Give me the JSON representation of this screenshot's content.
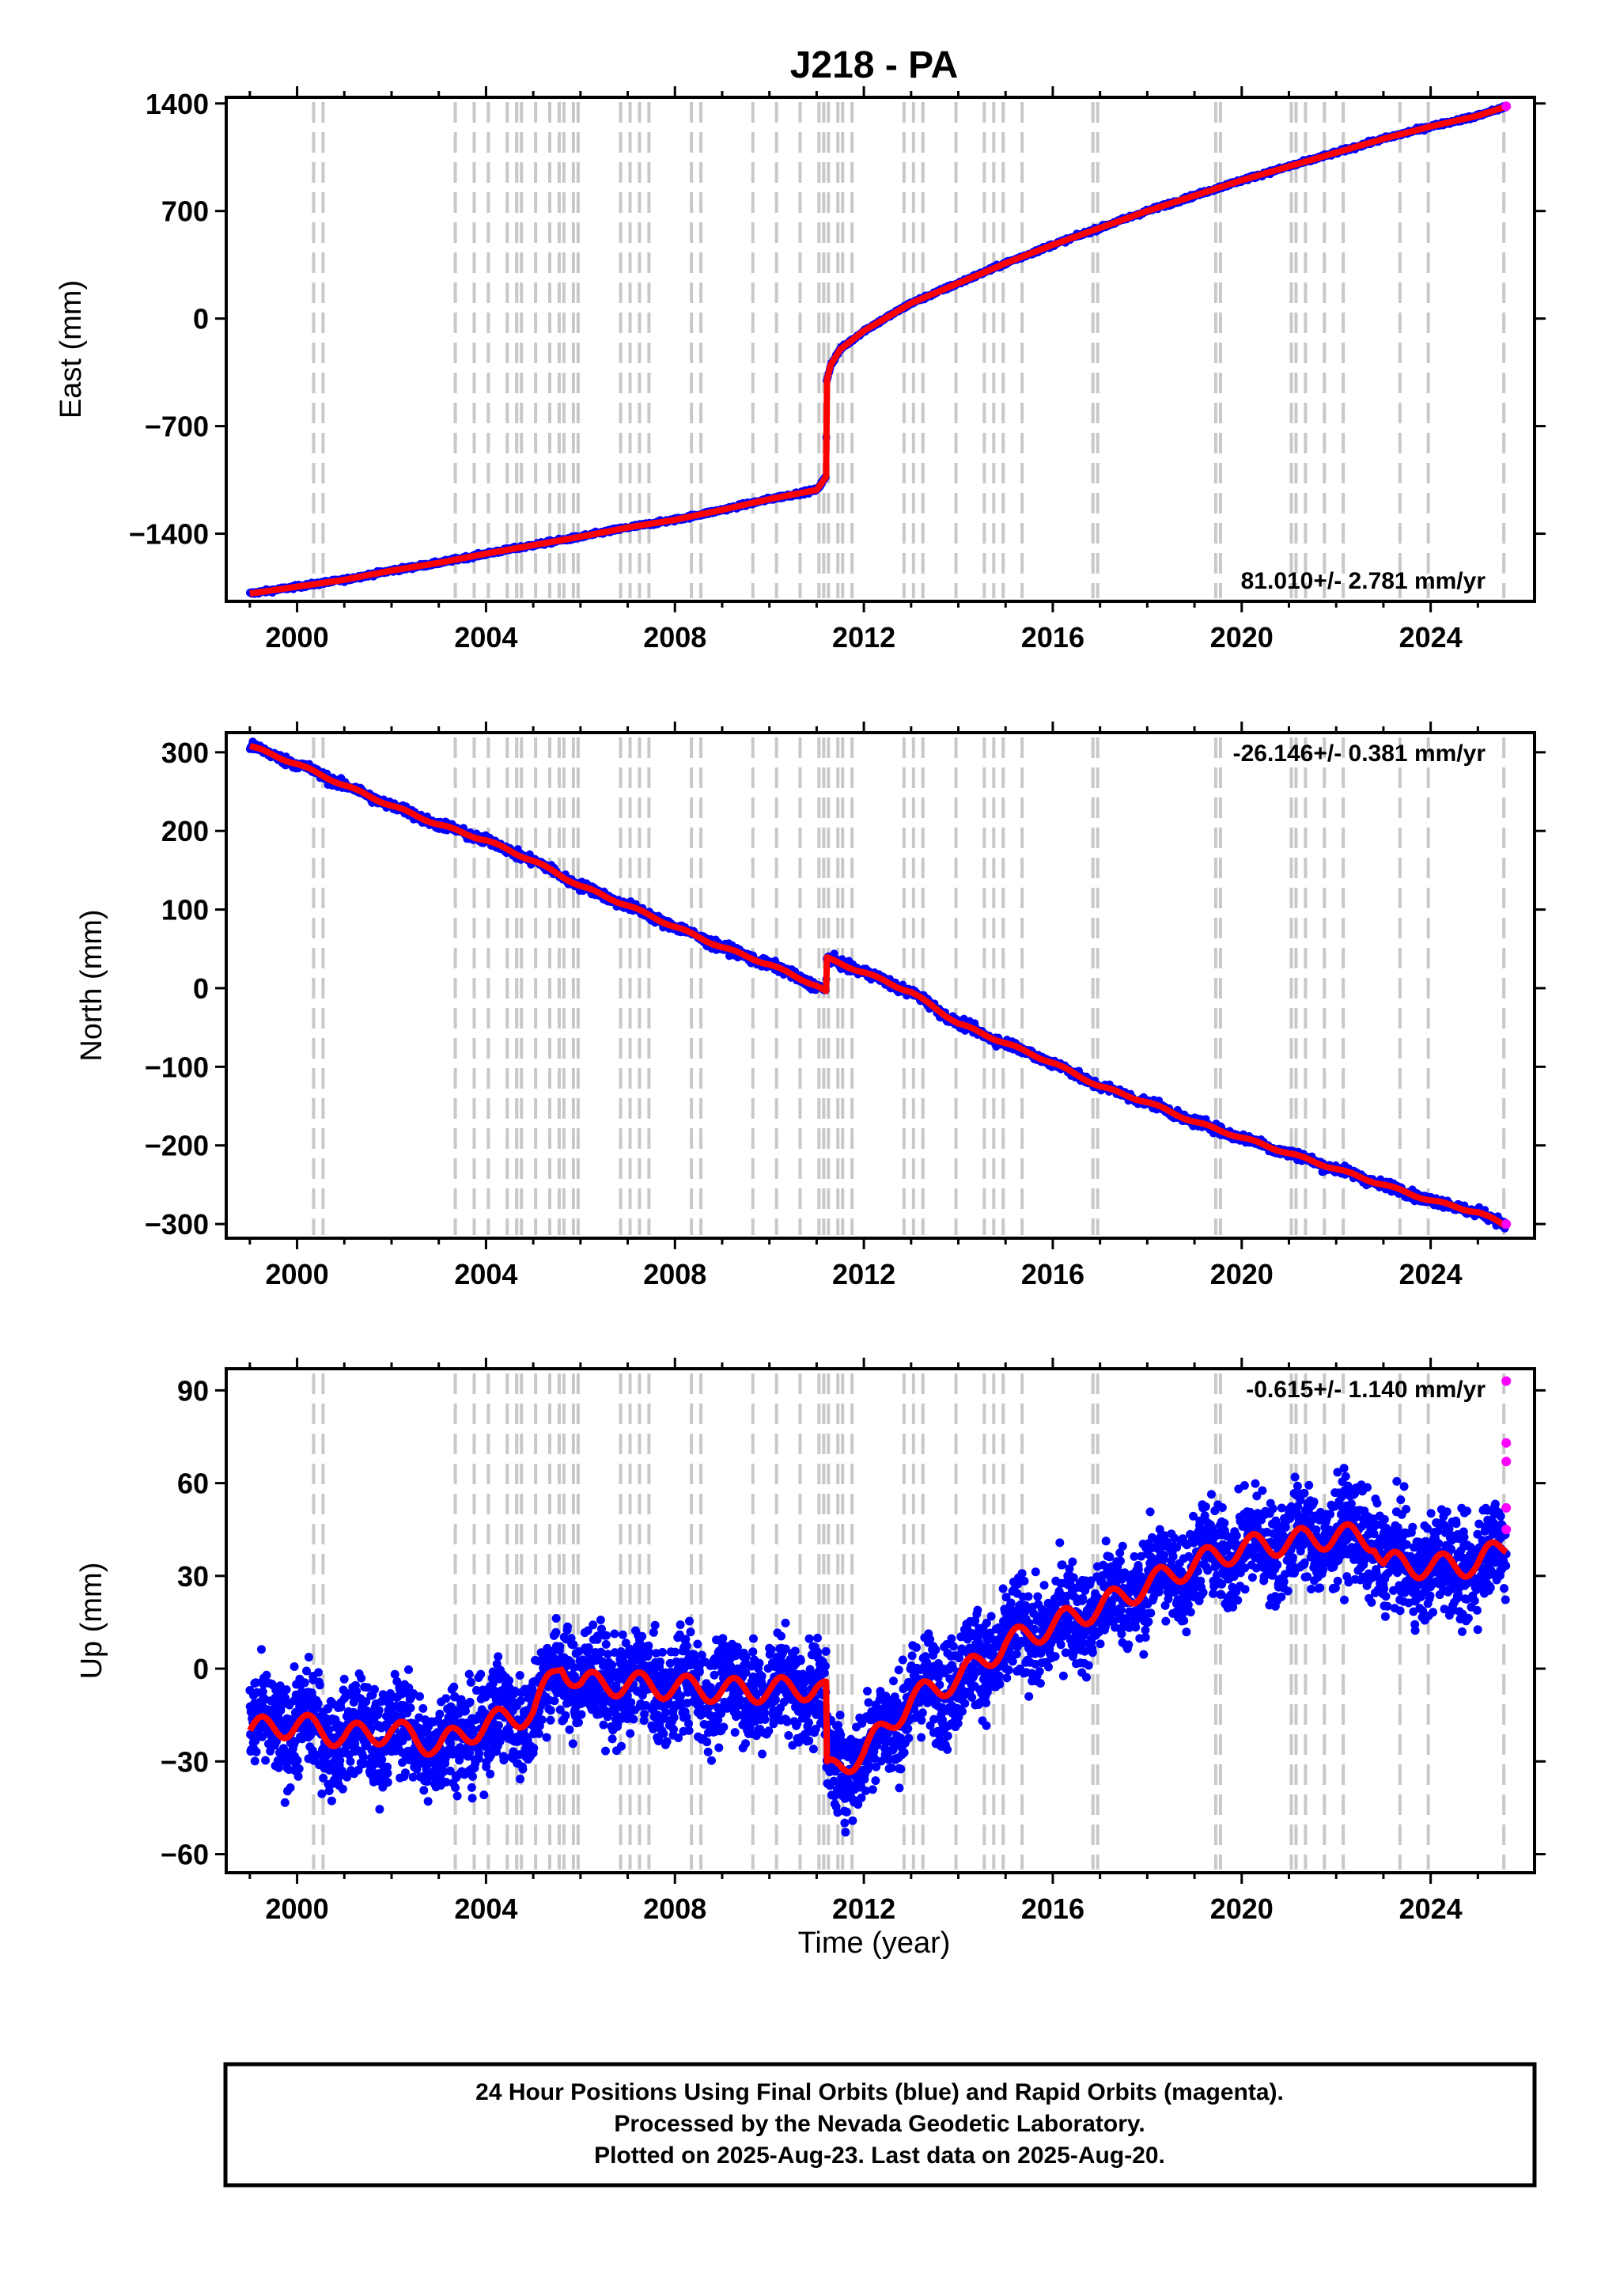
{
  "title": "J218 - PA",
  "colors": {
    "final_orbits": "#0000ff",
    "rapid_orbits": "#ff00ff",
    "model_fit": "#ff0000",
    "event_lines": "#c8c8c8"
  },
  "x_axis": {
    "label": "Time (year)",
    "ticks": [
      2000,
      2004,
      2008,
      2012,
      2016,
      2020,
      2024
    ],
    "range": [
      1998.5,
      2026.2
    ]
  },
  "event_years": [
    2000.35,
    2000.55,
    2003.35,
    2003.75,
    2004.05,
    2004.45,
    2004.65,
    2004.75,
    2005.05,
    2005.35,
    2005.55,
    2005.65,
    2005.85,
    2005.95,
    2006.85,
    2007.05,
    2007.25,
    2007.45,
    2008.35,
    2008.55,
    2009.65,
    2010.15,
    2010.65,
    2011.05,
    2011.15,
    2011.25,
    2011.45,
    2011.55,
    2011.75,
    2012.85,
    2013.05,
    2013.25,
    2013.95,
    2014.55,
    2014.75,
    2014.95,
    2015.35,
    2016.85,
    2016.95,
    2019.45,
    2019.55,
    2021.05,
    2021.15,
    2021.35,
    2021.75,
    2022.15,
    2023.35,
    2023.95,
    2025.55
  ],
  "panels": [
    {
      "id": "east",
      "ylabel": "East (mm)",
      "ylim": [
        -1840,
        1440
      ],
      "yticks": [
        "1400",
        "700",
        "0",
        "−700",
        "−1400"
      ],
      "ytick_values": [
        1400,
        700,
        0,
        -700,
        -1400
      ],
      "rate_text": "81.010+/- 2.781 mm/yr",
      "rate_position": "bottom-right"
    },
    {
      "id": "north",
      "ylabel": "North (mm)",
      "ylim": [
        -318,
        325
      ],
      "yticks": [
        "300",
        "200",
        "100",
        "0",
        "−100",
        "−200",
        "−300"
      ],
      "ytick_values": [
        300,
        200,
        100,
        0,
        -100,
        -200,
        -300
      ],
      "rate_text": "-26.146+/- 0.381 mm/yr",
      "rate_position": "top-right"
    },
    {
      "id": "up",
      "ylabel": "Up (mm)",
      "ylim": [
        -66,
        97
      ],
      "yticks": [
        "90",
        "60",
        "30",
        "0",
        "−30",
        "−60"
      ],
      "ytick_values": [
        90,
        60,
        30,
        0,
        -30,
        -60
      ],
      "rate_text": "-0.615+/- 1.140 mm/yr",
      "rate_position": "top-right"
    }
  ],
  "chart_data": [
    {
      "type": "scatter",
      "title": "J218 - PA",
      "xlabel": "Time (year)",
      "ylabel": "East (mm)",
      "xlim": [
        1998.5,
        2026.2
      ],
      "ylim": [
        -1840,
        1440
      ],
      "grid": false,
      "series": [
        {
          "name": "Final Orbits",
          "x": [
            1999.0,
            2000.0,
            2001.0,
            2002.0,
            2003.0,
            2004.0,
            2005.0,
            2006.0,
            2007.0,
            2008.0,
            2009.0,
            2010.0,
            2011.0,
            2011.2,
            2011.21,
            2011.3,
            2011.5,
            2012.0,
            2013.0,
            2014.0,
            2015.0,
            2016.0,
            2017.0,
            2018.0,
            2019.0,
            2020.0,
            2021.0,
            2022.0,
            2023.0,
            2024.0,
            2025.0,
            2025.6
          ],
          "y": [
            -1790,
            -1745,
            -1700,
            -1640,
            -1590,
            -1530,
            -1475,
            -1420,
            -1360,
            -1310,
            -1245,
            -1175,
            -1115,
            -1030,
            -410,
            -300,
            -200,
            -80,
            100,
            230,
            360,
            480,
            590,
            700,
            800,
            900,
            990,
            1080,
            1170,
            1250,
            1320,
            1380
          ]
        },
        {
          "name": "Rapid Orbits",
          "x": [
            2025.6
          ],
          "y": [
            1382
          ]
        }
      ]
    },
    {
      "type": "scatter",
      "xlabel": "Time (year)",
      "ylabel": "North (mm)",
      "xlim": [
        1998.5,
        2026.2
      ],
      "ylim": [
        -318,
        325
      ],
      "grid": false,
      "series": [
        {
          "name": "Final Orbits",
          "x": [
            1999.0,
            2000.0,
            2001.0,
            2002.0,
            2003.0,
            2004.0,
            2005.0,
            2006.0,
            2007.0,
            2008.0,
            2009.0,
            2010.0,
            2011.0,
            2011.2,
            2011.21,
            2012.0,
            2013.0,
            2014.0,
            2015.0,
            2016.0,
            2017.0,
            2018.0,
            2019.0,
            2020.0,
            2021.0,
            2022.0,
            2023.0,
            2024.0,
            2025.0,
            2025.6
          ],
          "y": [
            308,
            285,
            258,
            232,
            208,
            188,
            162,
            130,
            105,
            78,
            52,
            30,
            3,
            -5,
            38,
            20,
            -5,
            -45,
            -70,
            -95,
            -125,
            -145,
            -170,
            -190,
            -210,
            -230,
            -250,
            -270,
            -285,
            -302
          ]
        },
        {
          "name": "Rapid Orbits",
          "x": [
            2025.6
          ],
          "y": [
            -300
          ]
        }
      ]
    },
    {
      "type": "scatter",
      "xlabel": "Time (year)",
      "ylabel": "Up (mm)",
      "xlim": [
        1998.5,
        2026.2
      ],
      "ylim": [
        -66,
        97
      ],
      "grid": false,
      "series": [
        {
          "name": "Final Orbits",
          "x": [
            1999.0,
            2000.0,
            2001.0,
            2002.0,
            2003.0,
            2004.0,
            2005.0,
            2005.6,
            2006.0,
            2007.0,
            2008.0,
            2009.0,
            2010.0,
            2011.0,
            2011.2,
            2011.21,
            2012.0,
            2013.0,
            2014.0,
            2015.0,
            2016.0,
            2017.0,
            2018.0,
            2019.0,
            2020.0,
            2021.0,
            2022.0,
            2022.8,
            2023.0,
            2024.0,
            2025.0,
            2025.6
          ],
          "y": [
            -20,
            -18,
            -22,
            -20,
            -25,
            -18,
            -14,
            2,
            -5,
            -5,
            -6,
            -7,
            -7,
            -6,
            -8,
            -34,
            -27,
            -10,
            -3,
            8,
            14,
            20,
            27,
            34,
            39,
            41,
            43,
            42,
            34,
            33,
            34,
            40
          ]
        },
        {
          "name": "Rapid Orbits",
          "x": [
            2025.6,
            2025.6,
            2025.6,
            2025.6,
            2025.6
          ],
          "y": [
            93,
            73,
            67,
            52,
            45
          ]
        }
      ]
    }
  ],
  "footer": {
    "line1": "24 Hour Positions Using Final Orbits (blue) and Rapid Orbits (magenta).",
    "line2": "Processed by the Nevada Geodetic Laboratory.",
    "line3": "Plotted on 2025-Aug-23. Last data on 2025-Aug-20."
  }
}
